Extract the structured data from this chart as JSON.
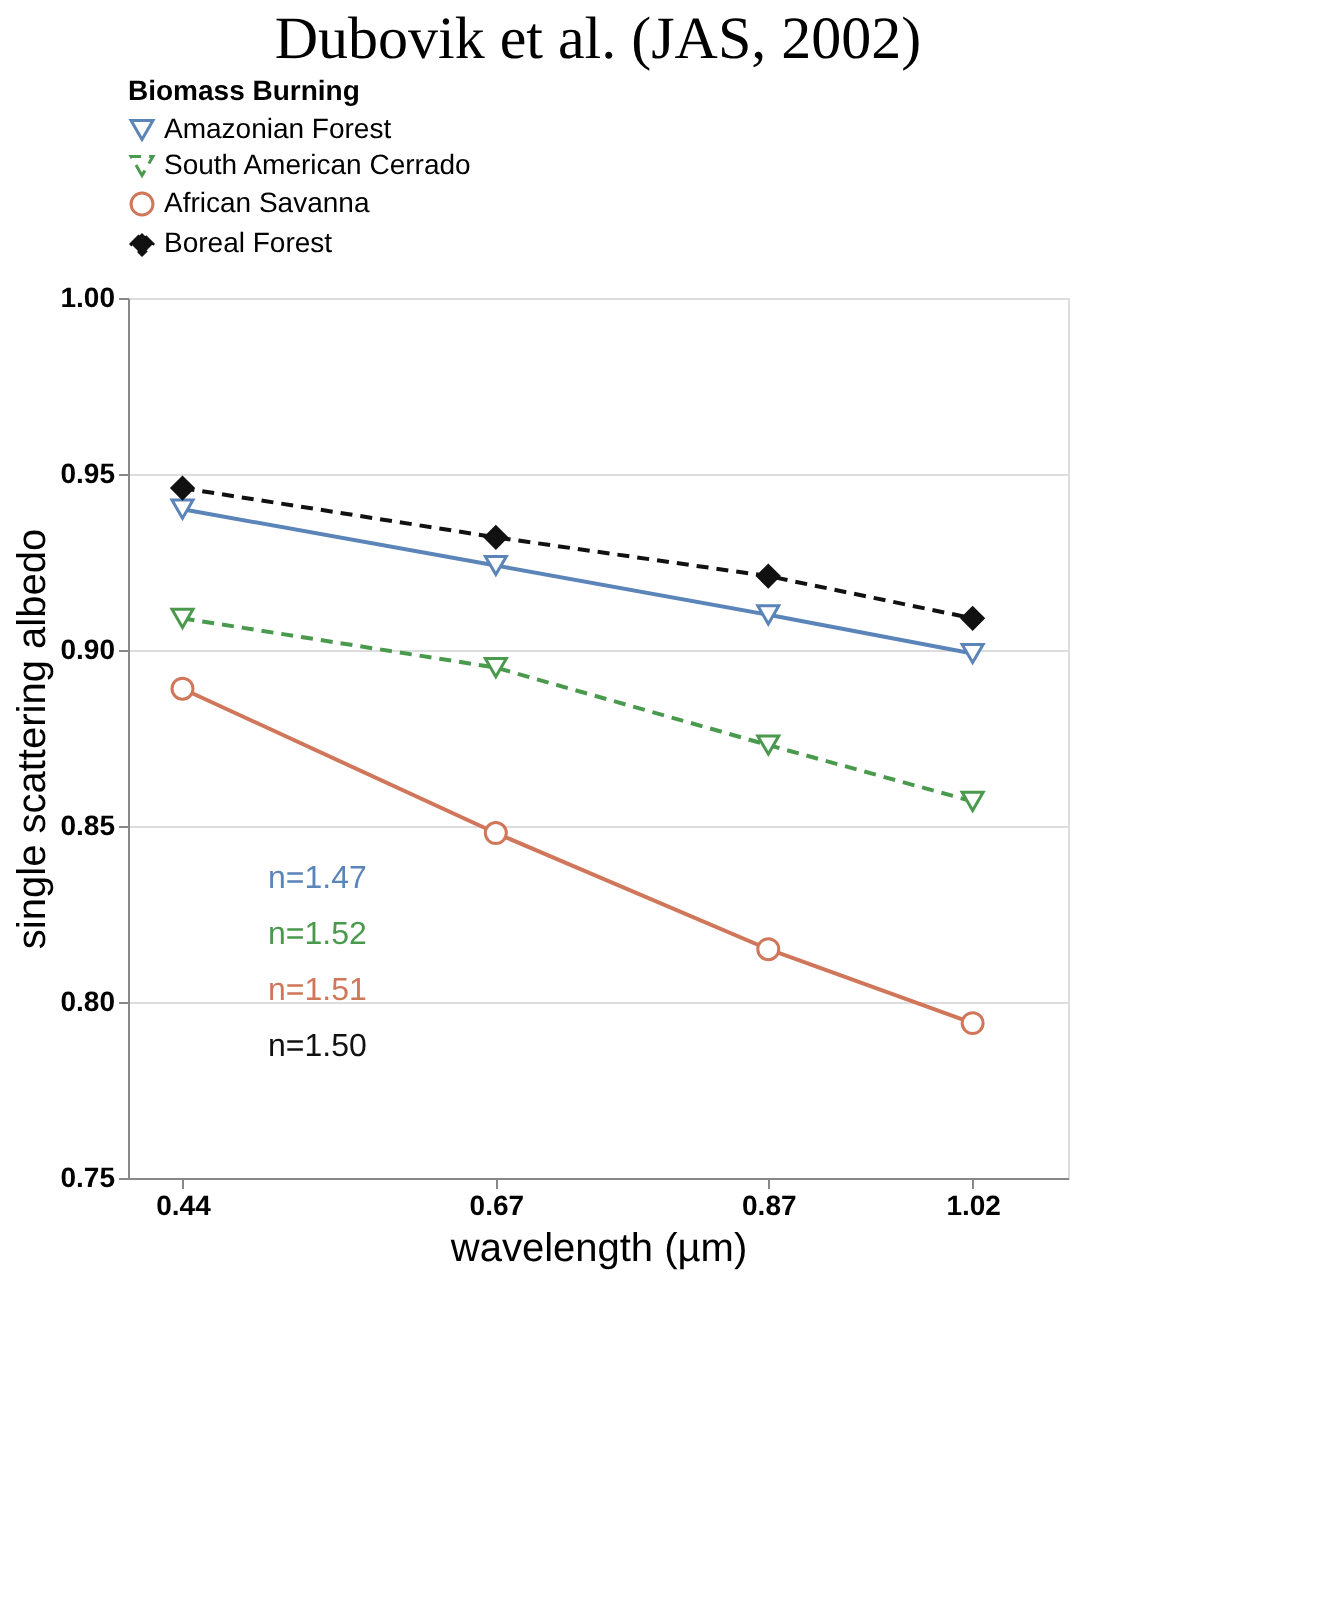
{
  "chart_data": {
    "type": "line",
    "title": "Dubovik et al. (JAS, 2002)",
    "legend_title": "Biomass Burning",
    "xlabel": "wavelength (µm)",
    "ylabel": "single scattering albedo",
    "x": [
      0.44,
      0.67,
      0.87,
      1.02
    ],
    "xlim": [
      0.4,
      1.09
    ],
    "xticks": [
      0.44,
      0.67,
      0.87,
      1.02
    ],
    "ylim": [
      0.75,
      1.0
    ],
    "yticks": [
      0.75,
      {
        "value": 0.8,
        "label": "0.80"
      },
      0.85,
      {
        "value": 0.9,
        "label": "0.90"
      },
      0.95,
      {
        "value": 1.0,
        "label": "1.00"
      }
    ],
    "grid": "y",
    "legend": "top",
    "series": [
      {
        "name": "Amazonian Forest",
        "color": "#5b84b8",
        "values": [
          0.94,
          0.924,
          0.91,
          0.899
        ],
        "marker": "triangle",
        "line_style": "solid"
      },
      {
        "name": "South American Cerrado",
        "color": "#4a9a4e",
        "values": [
          0.909,
          0.895,
          0.873,
          0.857
        ],
        "marker": "triangle",
        "line_style": "dashed"
      },
      {
        "name": "African Savanna",
        "color": "#d0765a",
        "values": [
          0.889,
          0.848,
          0.815,
          0.794
        ],
        "marker": "circle",
        "line_style": "solid"
      },
      {
        "name": "Boreal Forest",
        "color": "#111111",
        "values": [
          0.946,
          0.932,
          0.921,
          0.909
        ],
        "marker": "diamond",
        "line_style": "dashed"
      }
    ],
    "annotations": [
      "n=1.47",
      "n=1.52",
      "n=1.51",
      "n=1.50"
    ]
  }
}
